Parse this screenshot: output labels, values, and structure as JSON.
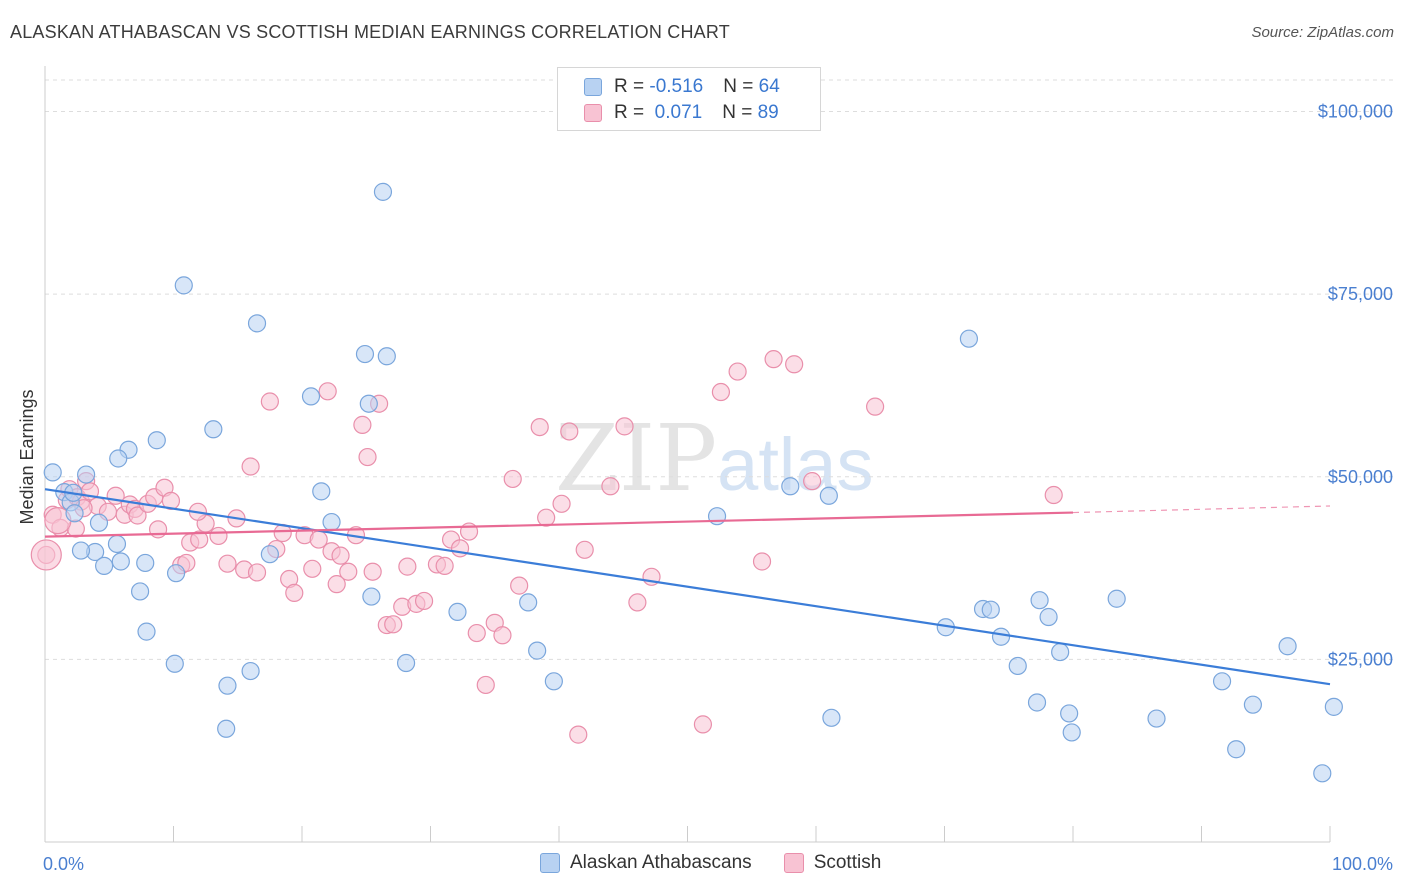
{
  "header": {
    "title": "ALASKAN ATHABASCAN VS SCOTTISH MEDIAN EARNINGS CORRELATION CHART",
    "source": "Source: ZipAtlas.com"
  },
  "legend": {
    "rows": [
      {
        "r_label": "R = ",
        "r_value": "-0.516",
        "n_label": "N = ",
        "n_value": "64"
      },
      {
        "r_label": "R = ",
        "r_value": " 0.071",
        "n_label": "N = ",
        "n_value": "89"
      }
    ]
  },
  "watermark": {
    "zip": "ZIP",
    "atlas": "atlas"
  },
  "colors": {
    "blue_fill": "#b8d2f2",
    "blue_stroke": "#7aa6dc",
    "blue_line": "#3b7dd8",
    "pink_fill": "#f8c3d3",
    "pink_stroke": "#e98fab",
    "pink_line": "#e86a94",
    "grid": "#dddddd",
    "axis_text": "#4a7fd0"
  },
  "chart_data": {
    "type": "scatter",
    "title": "ALASKAN ATHABASCAN VS SCOTTISH MEDIAN EARNINGS CORRELATION CHART",
    "xlabel": "",
    "ylabel": "Median Earnings",
    "xlim": [
      0,
      100
    ],
    "ylim": [
      0,
      105000
    ],
    "x_tick_labels": [
      "0.0%",
      "100.0%"
    ],
    "y_ticks": [
      25000,
      50000,
      75000,
      100000
    ],
    "y_tick_labels": [
      "$25,000",
      "$50,000",
      "$75,000",
      "$100,000"
    ],
    "grid": true,
    "legend_position": "bottom",
    "series": [
      {
        "name": "Alaskan Athabascans",
        "r": -0.516,
        "n": 64,
        "trend": {
          "x0": 0,
          "y0": 48300,
          "x1": 100,
          "y1": 21600
        },
        "points": [
          [
            0.6,
            50600
          ],
          [
            1.5,
            47900
          ],
          [
            2.0,
            46500
          ],
          [
            2.2,
            47800
          ],
          [
            2.3,
            45000
          ],
          [
            3.2,
            50300
          ],
          [
            4.2,
            43700
          ],
          [
            3.9,
            39700
          ],
          [
            2.8,
            39900
          ],
          [
            4.6,
            37800
          ],
          [
            6.5,
            53700
          ],
          [
            5.6,
            40800
          ],
          [
            5.9,
            38400
          ],
          [
            5.7,
            52500
          ],
          [
            7.8,
            38200
          ],
          [
            7.9,
            28800
          ],
          [
            7.4,
            34300
          ],
          [
            8.7,
            55000
          ],
          [
            10.2,
            36800
          ],
          [
            10.1,
            24400
          ],
          [
            10.8,
            76200
          ],
          [
            13.1,
            56500
          ],
          [
            14.2,
            21400
          ],
          [
            14.1,
            15500
          ],
          [
            16.5,
            71000
          ],
          [
            16.0,
            23400
          ],
          [
            17.5,
            39400
          ],
          [
            20.7,
            61000
          ],
          [
            21.5,
            48000
          ],
          [
            22.3,
            43800
          ],
          [
            25.2,
            60000
          ],
          [
            25.4,
            33600
          ],
          [
            24.9,
            66800
          ],
          [
            26.3,
            89000
          ],
          [
            26.6,
            66500
          ],
          [
            28.1,
            24500
          ],
          [
            32.1,
            31500
          ],
          [
            37.6,
            32800
          ],
          [
            38.3,
            26200
          ],
          [
            39.6,
            22000
          ],
          [
            52.3,
            44600
          ],
          [
            58.0,
            48700
          ],
          [
            61.0,
            47400
          ],
          [
            61.2,
            17000
          ],
          [
            70.1,
            29400
          ],
          [
            71.9,
            68900
          ],
          [
            73.0,
            31900
          ],
          [
            73.6,
            31800
          ],
          [
            74.4,
            28100
          ],
          [
            75.7,
            24100
          ],
          [
            77.2,
            19100
          ],
          [
            77.4,
            33100
          ],
          [
            78.1,
            30800
          ],
          [
            79.0,
            26000
          ],
          [
            79.7,
            17600
          ],
          [
            79.9,
            15000
          ],
          [
            83.4,
            33300
          ],
          [
            86.5,
            16900
          ],
          [
            91.6,
            22000
          ],
          [
            92.7,
            12700
          ],
          [
            94.0,
            18800
          ],
          [
            96.7,
            26800
          ],
          [
            99.4,
            9400
          ],
          [
            100.3,
            18500
          ]
        ]
      },
      {
        "name": "Scottish",
        "r": 0.071,
        "n": 89,
        "trend": {
          "x0": 0,
          "y0": 41800,
          "x1": 80,
          "y1": 45100,
          "dash_to_x": 100,
          "dash_to_y": 46000
        },
        "points": [
          [
            0.1,
            39300
          ],
          [
            0.6,
            44800
          ],
          [
            1.2,
            43000
          ],
          [
            1.7,
            46800
          ],
          [
            1.9,
            48300
          ],
          [
            2.5,
            47200
          ],
          [
            2.8,
            46600
          ],
          [
            3.2,
            49400
          ],
          [
            3.5,
            48000
          ],
          [
            4.1,
            46000
          ],
          [
            4.9,
            45200
          ],
          [
            5.5,
            47400
          ],
          [
            6.2,
            44800
          ],
          [
            6.6,
            46200
          ],
          [
            7.0,
            45600
          ],
          [
            7.2,
            44700
          ],
          [
            8.0,
            46300
          ],
          [
            8.5,
            47200
          ],
          [
            8.8,
            42800
          ],
          [
            9.3,
            48500
          ],
          [
            9.8,
            46700
          ],
          [
            10.6,
            37900
          ],
          [
            11.0,
            38200
          ],
          [
            11.3,
            41000
          ],
          [
            12.0,
            41400
          ],
          [
            12.5,
            43600
          ],
          [
            13.5,
            41900
          ],
          [
            14.2,
            38100
          ],
          [
            14.9,
            44300
          ],
          [
            15.5,
            37300
          ],
          [
            16.0,
            51400
          ],
          [
            16.5,
            36900
          ],
          [
            17.5,
            60300
          ],
          [
            18.0,
            40100
          ],
          [
            18.5,
            42300
          ],
          [
            19.0,
            36000
          ],
          [
            19.4,
            34100
          ],
          [
            20.2,
            42000
          ],
          [
            20.8,
            37400
          ],
          [
            21.3,
            41400
          ],
          [
            22.0,
            61700
          ],
          [
            22.3,
            39800
          ],
          [
            22.7,
            35300
          ],
          [
            23.0,
            39200
          ],
          [
            23.6,
            37000
          ],
          [
            24.2,
            42000
          ],
          [
            24.7,
            57100
          ],
          [
            25.1,
            52700
          ],
          [
            25.5,
            37000
          ],
          [
            26.0,
            60000
          ],
          [
            26.6,
            29700
          ],
          [
            27.1,
            29800
          ],
          [
            27.8,
            32200
          ],
          [
            28.2,
            37700
          ],
          [
            28.9,
            32600
          ],
          [
            29.5,
            33000
          ],
          [
            30.5,
            38000
          ],
          [
            31.1,
            37800
          ],
          [
            31.6,
            41400
          ],
          [
            32.3,
            40200
          ],
          [
            33.0,
            42500
          ],
          [
            33.6,
            28600
          ],
          [
            34.3,
            21500
          ],
          [
            35.0,
            30000
          ],
          [
            35.6,
            28300
          ],
          [
            36.4,
            49700
          ],
          [
            36.9,
            35100
          ],
          [
            38.5,
            56800
          ],
          [
            39.0,
            44400
          ],
          [
            40.2,
            46300
          ],
          [
            40.8,
            56200
          ],
          [
            42.0,
            40000
          ],
          [
            44.0,
            48700
          ],
          [
            45.1,
            56900
          ],
          [
            46.1,
            32800
          ],
          [
            47.2,
            36300
          ],
          [
            51.2,
            16100
          ],
          [
            52.6,
            61600
          ],
          [
            53.9,
            64400
          ],
          [
            55.8,
            38400
          ],
          [
            56.7,
            66100
          ],
          [
            58.3,
            65400
          ],
          [
            59.7,
            49400
          ],
          [
            64.6,
            59600
          ],
          [
            78.5,
            47500
          ],
          [
            41.5,
            14700
          ],
          [
            11.9,
            45200
          ],
          [
            3.0,
            45700
          ],
          [
            2.4,
            42900
          ]
        ]
      }
    ]
  }
}
